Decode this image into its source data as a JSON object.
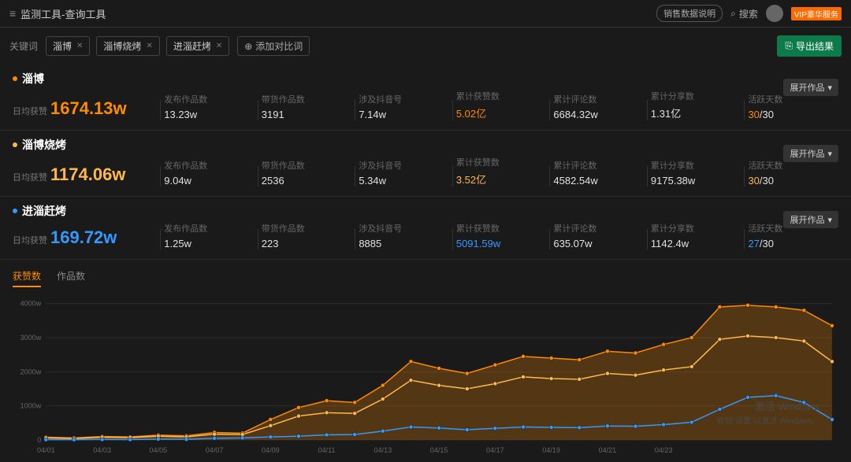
{
  "header": {
    "title": "监测工具-查询工具",
    "sales_pill": "销售数据说明",
    "search_label": "搜索",
    "vip_label": "VIP豪华服务"
  },
  "filter": {
    "label": "关键词",
    "chips": [
      "淄博",
      "淄博烧烤",
      "进淄赶烤"
    ],
    "add_label": "添加对比词",
    "export_label": "导出结果"
  },
  "colors": {
    "series": [
      "#ff8a00",
      "#ffb84d",
      "#3399ff"
    ],
    "highlight_yellow": "#ffb84d",
    "highlight_orange": "#ff8a00",
    "highlight_blue": "#3399ff",
    "text_primary": "#e0e0e0",
    "text_dim": "#666",
    "bg": "#1a1a1a",
    "grid": "#333333"
  },
  "metric_headers": [
    "发布作品数",
    "带货作品数",
    "涉及抖音号",
    "累计获赞数",
    "累计评论数",
    "累计分享数",
    "活跃天数"
  ],
  "daily_label": "日均获赞",
  "expand_label": "展开作品",
  "blocks": [
    {
      "title": "淄博",
      "dot": "#ff8a00",
      "daily_val": "1674.13w",
      "daily_color": "#ff8a00",
      "vals": [
        "13.23w",
        "3191",
        "7.14w",
        "5.02亿",
        "6684.32w",
        "1.31亿"
      ],
      "like_color": "#ff8a00",
      "active_num": "30",
      "active_num_color": "#ff8a00",
      "active_den": "/30"
    },
    {
      "title": "淄博烧烤",
      "dot": "#ffb84d",
      "daily_val": "1174.06w",
      "daily_color": "#ffb84d",
      "vals": [
        "9.04w",
        "2536",
        "5.34w",
        "3.52亿",
        "4582.54w",
        "9175.38w"
      ],
      "like_color": "#ffb84d",
      "active_num": "30",
      "active_num_color": "#ffb84d",
      "active_den": "/30"
    },
    {
      "title": "进淄赶烤",
      "dot": "#3399ff",
      "daily_val": "169.72w",
      "daily_color": "#3399ff",
      "vals": [
        "1.25w",
        "223",
        "8885",
        "5091.59w",
        "635.07w",
        "1142.4w"
      ],
      "like_color": "#3399ff",
      "active_num": "27",
      "active_num_color": "#3399ff",
      "active_den": "/30"
    }
  ],
  "tabs": {
    "items": [
      "获赞数",
      "作品数"
    ],
    "active": 0
  },
  "chart": {
    "type": "line",
    "x_labels": [
      "04/01",
      "04/03",
      "04/05",
      "04/07",
      "04/09",
      "04/11",
      "04/13",
      "04/15",
      "04/17",
      "04/19",
      "04/21",
      "04/23"
    ],
    "y_ticks": [
      "0",
      "1000w",
      "2000w",
      "3000w",
      "4000w"
    ],
    "ylim": [
      0,
      4200
    ],
    "background": "#1a1a1a",
    "grid_color": "#2a2a2a",
    "marker_r": 2.5,
    "area_fill": true,
    "area_fill_opacity": 0.25,
    "line_width": 1.5,
    "series": [
      {
        "name": "淄博",
        "color": "#ff8a00",
        "values": [
          80,
          60,
          100,
          90,
          140,
          120,
          220,
          200,
          600,
          950,
          1150,
          1100,
          1600,
          2300,
          2100,
          1950,
          2200,
          2450,
          2400,
          2350,
          2600,
          2550,
          2800,
          3000,
          3900,
          3950,
          3900,
          3800,
          3350
        ]
      },
      {
        "name": "淄博烧烤",
        "color": "#ffb84d",
        "values": [
          60,
          40,
          80,
          70,
          110,
          90,
          170,
          160,
          420,
          700,
          800,
          780,
          1200,
          1750,
          1600,
          1500,
          1650,
          1850,
          1800,
          1780,
          1950,
          1900,
          2050,
          2150,
          2950,
          3050,
          3000,
          2900,
          2300
        ]
      },
      {
        "name": "进淄赶烤",
        "color": "#3399ff",
        "values": [
          10,
          8,
          15,
          12,
          25,
          20,
          50,
          60,
          90,
          110,
          150,
          160,
          260,
          380,
          350,
          300,
          340,
          380,
          370,
          360,
          410,
          400,
          450,
          520,
          900,
          1250,
          1300,
          1100,
          600
        ]
      }
    ]
  },
  "watermark": {
    "line1": "激活 Windows",
    "line2": "转到\"设置\"以激活 Windows。"
  }
}
